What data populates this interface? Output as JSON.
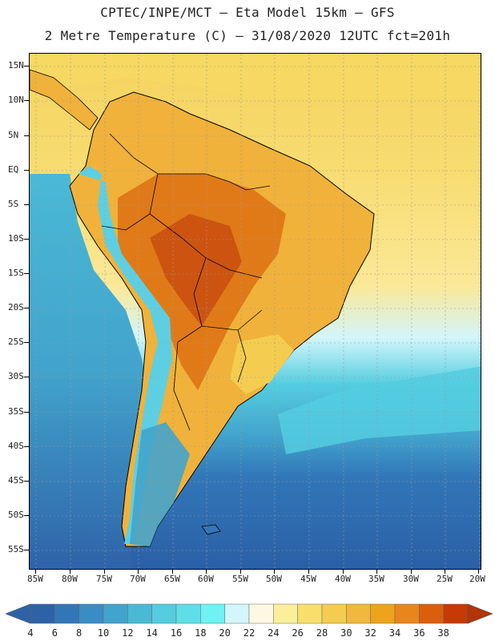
{
  "header": {
    "line1": "CPTEC/INPE/MCT –  Eta Model 15km – GFS",
    "line2": "2 Metre Temperature (C) – 31/08/2020 12UTC fct=201h"
  },
  "axes": {
    "lat_labels": [
      "15N",
      "10N",
      "5N",
      "EQ",
      "5S",
      "10S",
      "15S",
      "20S",
      "25S",
      "30S",
      "35S",
      "40S",
      "45S",
      "50S",
      "55S"
    ],
    "lon_labels": [
      "85W",
      "80W",
      "75W",
      "70W",
      "65W",
      "60W",
      "55W",
      "50W",
      "45W",
      "40W",
      "35W",
      "30W",
      "25W",
      "20W"
    ]
  },
  "colorbar": {
    "labels": [
      "4",
      "6",
      "8",
      "10",
      "12",
      "14",
      "16",
      "18",
      "20",
      "22",
      "24",
      "26",
      "28",
      "30",
      "32",
      "34",
      "36",
      "38"
    ],
    "colors": [
      "#2e62a8",
      "#3276b8",
      "#3a8cc4",
      "#42a3cc",
      "#4ab9d6",
      "#54cde0",
      "#5edfe8",
      "#6ef2f4",
      "#d2f6fb",
      "#fdf8e4",
      "#fbef9c",
      "#f8df6c",
      "#f4cd50",
      "#f0b83c",
      "#eea31c",
      "#e8861c",
      "#dc5e0c",
      "#c63a08"
    ],
    "arrow_left_color": "#2e62a8",
    "arrow_right_color": "#b43508"
  },
  "palette": {
    "ocean_deep": "#2a5fa6",
    "ocean_mid": "#3c8fc6",
    "ocean_cyan": "#46c4dc",
    "ocean_warm": "#fbe898",
    "ocean_tropic": "#f4d25e",
    "land_warm": "#f0b23a",
    "land_hot": "#e07a18",
    "land_hottest": "#cc5410",
    "andes_cold": "#5ecfe2",
    "border": "#000000",
    "grid": "#9a9a9a"
  }
}
